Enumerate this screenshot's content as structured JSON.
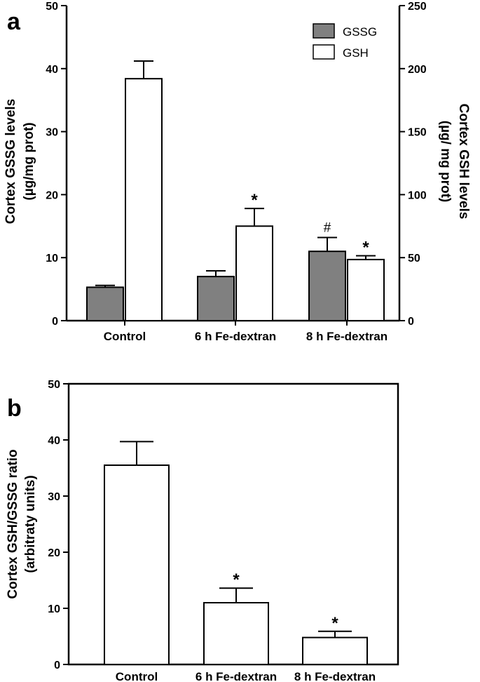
{
  "chart_data": [
    {
      "panel": "a",
      "type": "bar",
      "categories": [
        "Control",
        "6 h Fe-dextran",
        "8 h Fe-dextran"
      ],
      "ylabel": [
        "Cortex GSSG levels",
        "(µg/mg prot)"
      ],
      "y2label": [
        "Cortex GSH  levels",
        "(µg/ mg prot)"
      ],
      "ylim": [
        0,
        50
      ],
      "yticks": [
        0,
        10,
        20,
        30,
        40,
        50
      ],
      "y2lim": [
        0,
        250
      ],
      "y2ticks": [
        0,
        50,
        100,
        150,
        200,
        250
      ],
      "legend_position": "top-right",
      "series": [
        {
          "name": "GSSG",
          "axis": "left",
          "color": "#808080",
          "values": [
            5.3,
            7.0,
            11.0
          ],
          "errors": [
            0.3,
            0.9,
            2.2
          ],
          "annotations": [
            "",
            "",
            "#"
          ]
        },
        {
          "name": "GSH",
          "axis": "right",
          "color": "#ffffff",
          "values": [
            192,
            75,
            48.5
          ],
          "errors": [
            14,
            14,
            3
          ],
          "annotations": [
            "",
            "*",
            "*"
          ]
        }
      ]
    },
    {
      "panel": "b",
      "type": "bar",
      "categories": [
        "Control",
        "6 h Fe-dextran",
        "8 h Fe-dextran"
      ],
      "ylabel": [
        "Cortex GSH/GSSG ratio",
        "(arbitraty units)"
      ],
      "ylim": [
        0,
        50
      ],
      "yticks": [
        0,
        10,
        20,
        30,
        40,
        50
      ],
      "series": [
        {
          "name": "",
          "color": "#ffffff",
          "values": [
            35.5,
            11.0,
            4.8
          ],
          "errors": [
            4.2,
            2.6,
            1.1
          ],
          "annotations": [
            "",
            "*",
            "*"
          ]
        }
      ]
    }
  ]
}
